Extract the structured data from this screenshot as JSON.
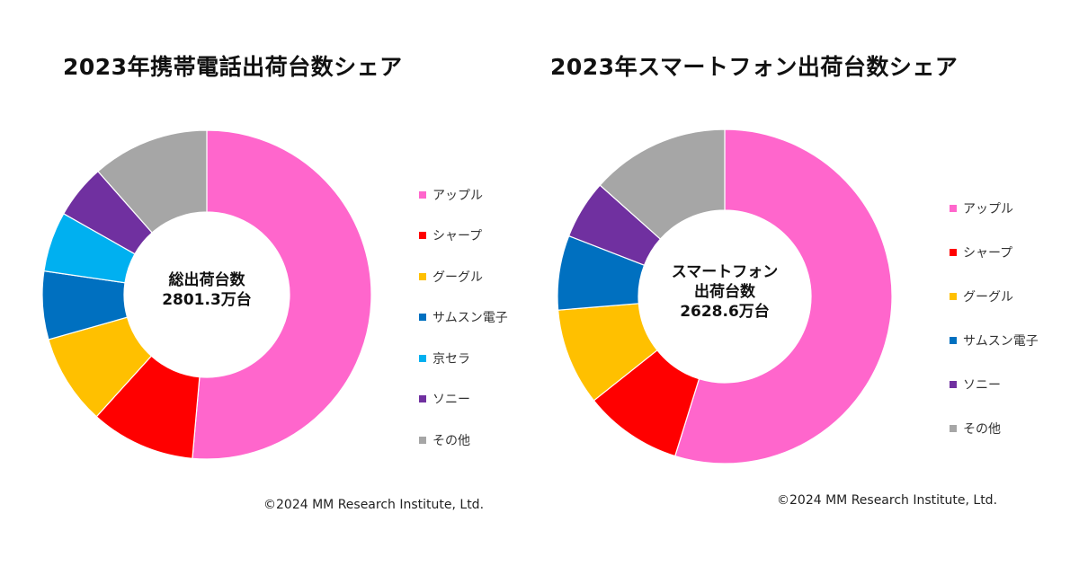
{
  "chart_data": [
    {
      "type": "pie",
      "variant": "donut",
      "title": "2023年携帯電話出荷台数シェア",
      "center_label": [
        "総出荷台数",
        "2801.3万台"
      ],
      "total": "2801.3万台",
      "categories": [
        "アップル",
        "シャープ",
        "グーグル",
        "サムスン電子",
        "京セラ",
        "ソニー",
        "その他"
      ],
      "values": [
        51.4,
        10.3,
        8.9,
        6.7,
        5.9,
        5.3,
        11.5
      ],
      "unit": "% (estimated share)",
      "colors": [
        "#ff66cc",
        "#ff0000",
        "#ffc000",
        "#0070c0",
        "#00b0f0",
        "#7030a0",
        "#a6a6a6"
      ],
      "legend_position": "right",
      "copyright": "©2024 MM Research Institute, Ltd."
    },
    {
      "type": "pie",
      "variant": "donut",
      "title": "2023年スマートフォン出荷台数シェア",
      "center_label": [
        "スマートフォン",
        "出荷台数",
        "2628.6万台"
      ],
      "total": "2628.6万台",
      "categories": [
        "アップル",
        "シャープ",
        "グーグル",
        "サムスン電子",
        "ソニー",
        "その他"
      ],
      "values": [
        54.8,
        9.5,
        9.4,
        7.2,
        5.7,
        13.4
      ],
      "unit": "% (estimated share)",
      "colors": [
        "#ff66cc",
        "#ff0000",
        "#ffc000",
        "#0070c0",
        "#7030a0",
        "#a6a6a6"
      ],
      "legend_position": "right",
      "copyright": "©2024 MM Research Institute, Ltd."
    }
  ]
}
